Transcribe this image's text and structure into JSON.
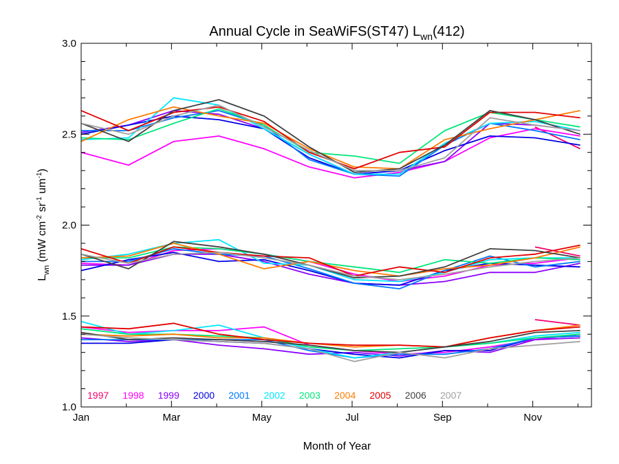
{
  "chart_data": {
    "type": "line",
    "title": {
      "main": "Annual Cycle in SeaWiFS(ST47) L",
      "sub": "wn",
      "suffix": "(412)"
    },
    "xlabel": "Month of Year",
    "ylabel": {
      "L": "L",
      "wn": "wn",
      "open": " (mW cm",
      "sup1": "-2",
      "sr": " sr",
      "sup2": "-1",
      "um": " um",
      "sup3": "-1",
      "close": ")"
    },
    "xlim": [
      1,
      12.3
    ],
    "ylim": [
      1.0,
      3.0
    ],
    "x_ticks": [
      {
        "value": 1,
        "label": "Jan"
      },
      {
        "value": 3,
        "label": "Mar"
      },
      {
        "value": 5,
        "label": "May"
      },
      {
        "value": 7,
        "label": "Jul"
      },
      {
        "value": 9,
        "label": "Sep"
      },
      {
        "value": 11,
        "label": "Nov"
      }
    ],
    "y_ticks": [
      {
        "value": 1.0,
        "label": "1.0"
      },
      {
        "value": 1.5,
        "label": "1.5"
      },
      {
        "value": 2.0,
        "label": "2.0"
      },
      {
        "value": 2.5,
        "label": "2.5"
      },
      {
        "value": 3.0,
        "label": "3.0"
      }
    ],
    "x": [
      1.0,
      2.05,
      3.05,
      4.05,
      5.05,
      6.05,
      7.05,
      8.05,
      9.05,
      10.05,
      11.05,
      12.05
    ],
    "series": [
      {
        "name": "1997",
        "color": "#f0006c",
        "groups": [
          [
            null,
            null,
            null,
            null,
            null,
            null,
            null,
            null,
            null,
            null,
            11.05,
            2.54,
            12.05,
            2.42
          ],
          [
            null,
            null,
            null,
            null,
            null,
            null,
            null,
            null,
            null,
            null,
            11.05,
            1.88,
            12.05,
            1.83
          ],
          [
            null,
            null,
            null,
            null,
            null,
            null,
            null,
            null,
            null,
            null,
            11.05,
            1.48,
            12.05,
            1.45
          ]
        ]
      },
      {
        "name": "1998",
        "color": "#ff00ff",
        "groups": [
          [
            2.4,
            2.33,
            2.46,
            2.49,
            2.42,
            2.32,
            2.26,
            2.29,
            2.35,
            2.48,
            2.53,
            2.49
          ],
          [
            1.79,
            1.78,
            1.86,
            1.87,
            1.84,
            1.8,
            1.73,
            1.69,
            1.72,
            1.78,
            1.79,
            1.82
          ],
          [
            1.44,
            1.41,
            1.42,
            1.42,
            1.44,
            1.34,
            1.31,
            1.29,
            1.3,
            1.33,
            1.37,
            1.4
          ]
        ]
      },
      {
        "name": "1999",
        "color": "#8a00ff",
        "groups": [
          [
            2.51,
            2.55,
            2.63,
            2.61,
            2.53,
            2.39,
            2.28,
            2.3,
            2.35,
            2.56,
            2.55,
            2.52
          ],
          [
            1.78,
            1.78,
            1.84,
            1.84,
            1.8,
            1.73,
            1.68,
            1.67,
            1.69,
            1.74,
            1.74,
            1.79
          ],
          [
            1.38,
            1.36,
            1.37,
            1.34,
            1.32,
            1.29,
            1.3,
            1.28,
            1.31,
            1.3,
            1.37,
            1.38
          ]
        ]
      },
      {
        "name": "2000",
        "color": "#0000e6",
        "groups": [
          [
            2.5,
            2.55,
            2.6,
            2.58,
            2.53,
            2.37,
            2.28,
            2.3,
            2.41,
            2.49,
            2.48,
            2.44
          ],
          [
            1.75,
            1.81,
            1.85,
            1.8,
            1.81,
            1.75,
            1.68,
            1.67,
            1.75,
            1.79,
            1.78,
            1.77
          ],
          [
            1.35,
            1.35,
            1.37,
            1.36,
            1.35,
            1.32,
            1.29,
            1.27,
            1.31,
            1.31,
            1.38,
            1.39
          ]
        ]
      },
      {
        "name": "2001",
        "color": "#0077ff",
        "groups": [
          [
            2.52,
            2.52,
            2.59,
            2.63,
            2.55,
            2.36,
            2.28,
            2.27,
            2.44,
            2.56,
            2.52,
            2.47
          ],
          [
            1.8,
            1.8,
            1.87,
            1.84,
            1.83,
            1.76,
            1.68,
            1.65,
            1.75,
            1.83,
            1.77,
            1.8
          ],
          [
            1.37,
            1.37,
            1.37,
            1.37,
            1.37,
            1.31,
            1.27,
            1.29,
            1.29,
            1.32,
            1.38,
            1.39
          ]
        ]
      },
      {
        "name": "2002",
        "color": "#00e5ff",
        "groups": [
          [
            2.47,
            2.48,
            2.7,
            2.66,
            2.53,
            2.39,
            2.28,
            2.28,
            2.45,
            2.56,
            2.57,
            2.52
          ],
          [
            1.81,
            1.84,
            1.9,
            1.92,
            1.79,
            1.78,
            1.7,
            1.69,
            1.74,
            1.81,
            1.82,
            1.82
          ],
          [
            1.47,
            1.4,
            1.42,
            1.45,
            1.38,
            1.32,
            1.27,
            1.3,
            1.33,
            1.35,
            1.39,
            1.41
          ]
        ]
      },
      {
        "name": "2003",
        "color": "#00e67a",
        "groups": [
          [
            2.48,
            2.47,
            2.56,
            2.64,
            2.55,
            2.4,
            2.38,
            2.34,
            2.52,
            2.62,
            2.58,
            2.54
          ],
          [
            1.82,
            1.82,
            1.88,
            1.87,
            1.84,
            1.8,
            1.77,
            1.74,
            1.81,
            1.79,
            1.82,
            1.81
          ],
          [
            1.43,
            1.4,
            1.4,
            1.39,
            1.38,
            1.33,
            1.31,
            1.32,
            1.33,
            1.35,
            1.38,
            1.4
          ]
        ]
      },
      {
        "name": "2004",
        "color": "#ff7a00",
        "groups": [
          [
            2.46,
            2.58,
            2.65,
            2.6,
            2.56,
            2.42,
            2.32,
            2.31,
            2.47,
            2.53,
            2.58,
            2.63
          ],
          [
            1.82,
            1.83,
            1.9,
            1.84,
            1.76,
            1.8,
            1.75,
            1.72,
            1.76,
            1.78,
            1.82,
            1.88
          ],
          [
            1.4,
            1.39,
            1.4,
            1.38,
            1.38,
            1.35,
            1.33,
            1.34,
            1.33,
            1.38,
            1.42,
            1.45
          ]
        ]
      },
      {
        "name": "2005",
        "color": "#e00000",
        "groups": [
          [
            2.63,
            2.52,
            2.62,
            2.65,
            2.57,
            2.4,
            2.31,
            2.4,
            2.43,
            2.62,
            2.62,
            2.59
          ],
          [
            1.87,
            1.79,
            1.88,
            1.85,
            1.83,
            1.82,
            1.72,
            1.77,
            1.74,
            1.82,
            1.84,
            1.89
          ],
          [
            1.44,
            1.43,
            1.46,
            1.4,
            1.37,
            1.35,
            1.34,
            1.34,
            1.33,
            1.38,
            1.42,
            1.44
          ]
        ]
      },
      {
        "name": "2006",
        "color": "#404040",
        "groups": [
          [
            2.56,
            2.46,
            2.63,
            2.69,
            2.6,
            2.43,
            2.29,
            2.31,
            2.44,
            2.63,
            2.58,
            2.5
          ],
          [
            1.84,
            1.76,
            1.91,
            1.88,
            1.84,
            1.78,
            1.71,
            1.72,
            1.77,
            1.87,
            1.86,
            1.82
          ],
          [
            1.41,
            1.37,
            1.38,
            1.37,
            1.36,
            1.34,
            1.31,
            1.3,
            1.33,
            1.36,
            1.41,
            1.42
          ]
        ]
      },
      {
        "name": "2007",
        "color": "#a0a0a0",
        "groups": [
          [
            2.56,
            2.5,
            2.6,
            2.66,
            2.54,
            2.41,
            2.3,
            2.3,
            2.37,
            2.59,
            2.55,
            2.52
          ],
          [
            1.84,
            1.79,
            1.84,
            1.85,
            1.82,
            1.78,
            1.72,
            1.7,
            1.73,
            1.77,
            1.8,
            1.82
          ],
          [
            1.4,
            1.38,
            1.37,
            1.36,
            1.35,
            1.32,
            1.25,
            1.3,
            1.27,
            1.32,
            1.34,
            1.36
          ]
        ]
      }
    ]
  }
}
